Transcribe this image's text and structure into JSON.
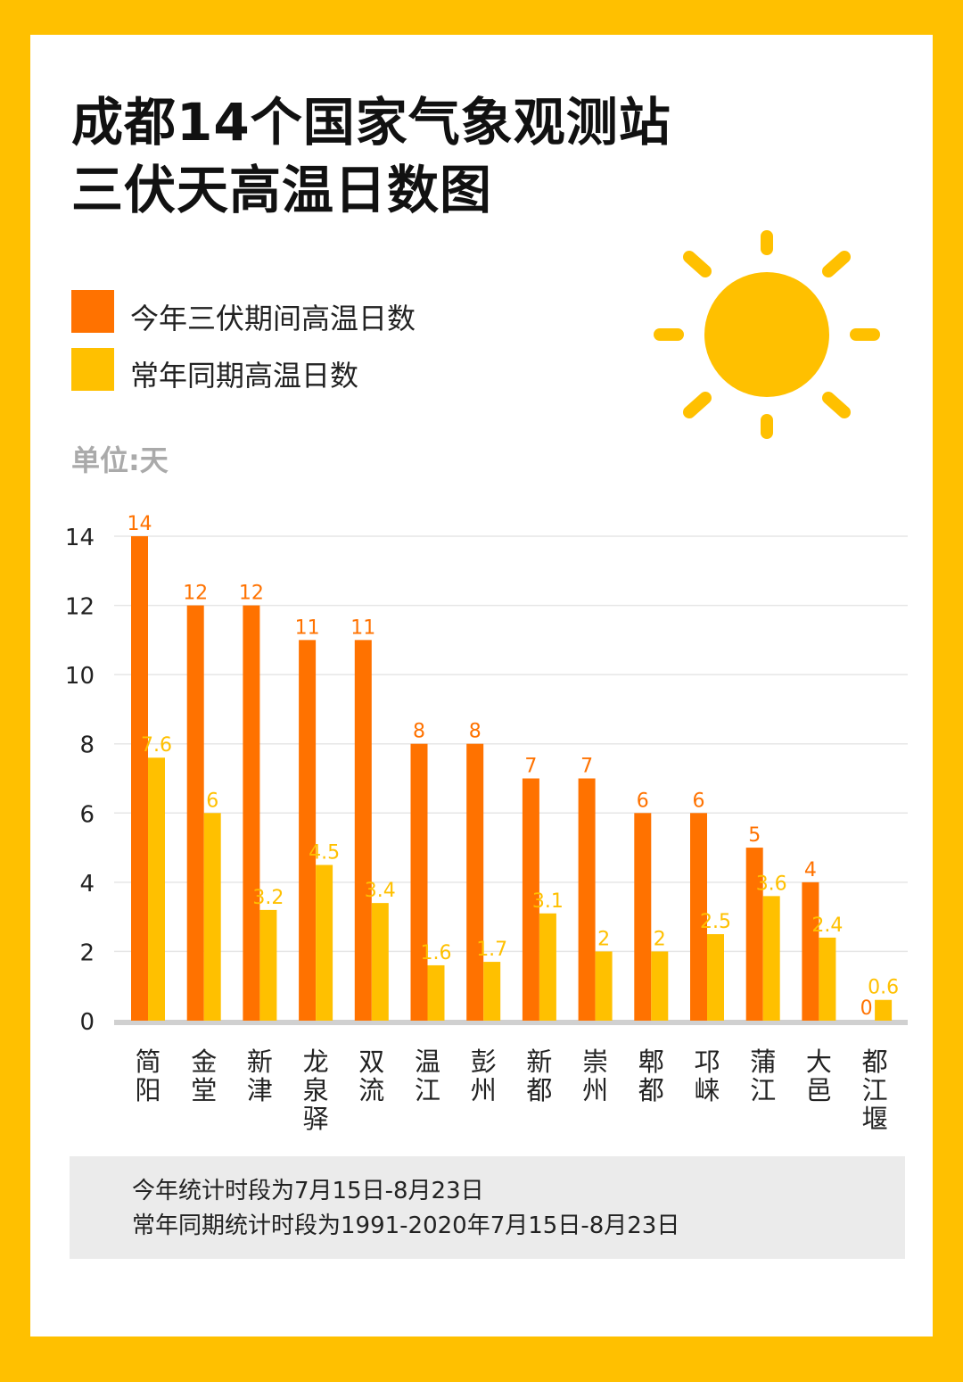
{
  "title": {
    "line1": "成都14个国家气象观测站",
    "line2": "三伏天高温日数图"
  },
  "legend": [
    {
      "label": "今年三伏期间高温日数",
      "color": "#FF7200"
    },
    {
      "label": "常年同期高温日数",
      "color": "#FFC000"
    }
  ],
  "unit_label": "单位:天",
  "colors": {
    "frame": "#FFC000",
    "current_year": "#FF7200",
    "normal": "#FFC000",
    "sun": "#FFC000",
    "note_background": "#EBEBEB"
  },
  "chart_data": {
    "type": "bar",
    "title": "成都14个国家气象观测站三伏天高温日数图",
    "ylabel": "单位:天",
    "xlabel": "",
    "ylim": [
      0,
      14
    ],
    "yticks": [
      0,
      2,
      4,
      6,
      8,
      10,
      12,
      14
    ],
    "grid": true,
    "legend_position": "top-left",
    "categories": [
      "简阳",
      "金堂",
      "新津",
      "龙泉驿",
      "双流",
      "温江",
      "彭州",
      "新都",
      "崇州",
      "郫都",
      "邛崃",
      "蒲江",
      "大邑",
      "都江堰"
    ],
    "series": [
      {
        "name": "今年三伏期间高温日数",
        "color": "#FF7200",
        "values": [
          14,
          12,
          12,
          11,
          11,
          8,
          8,
          7,
          7,
          6,
          6,
          5,
          4,
          0
        ]
      },
      {
        "name": "常年同期高温日数",
        "color": "#FFC000",
        "values": [
          7.6,
          6,
          3.2,
          4.5,
          3.4,
          1.6,
          1.7,
          3.1,
          2,
          2,
          2.5,
          3.6,
          2.4,
          0.6
        ]
      }
    ]
  },
  "note": {
    "line1": "今年统计时段为7月15日-8月23日",
    "line2": "常年同期统计时段为1991-2020年7月15日-8月23日"
  }
}
